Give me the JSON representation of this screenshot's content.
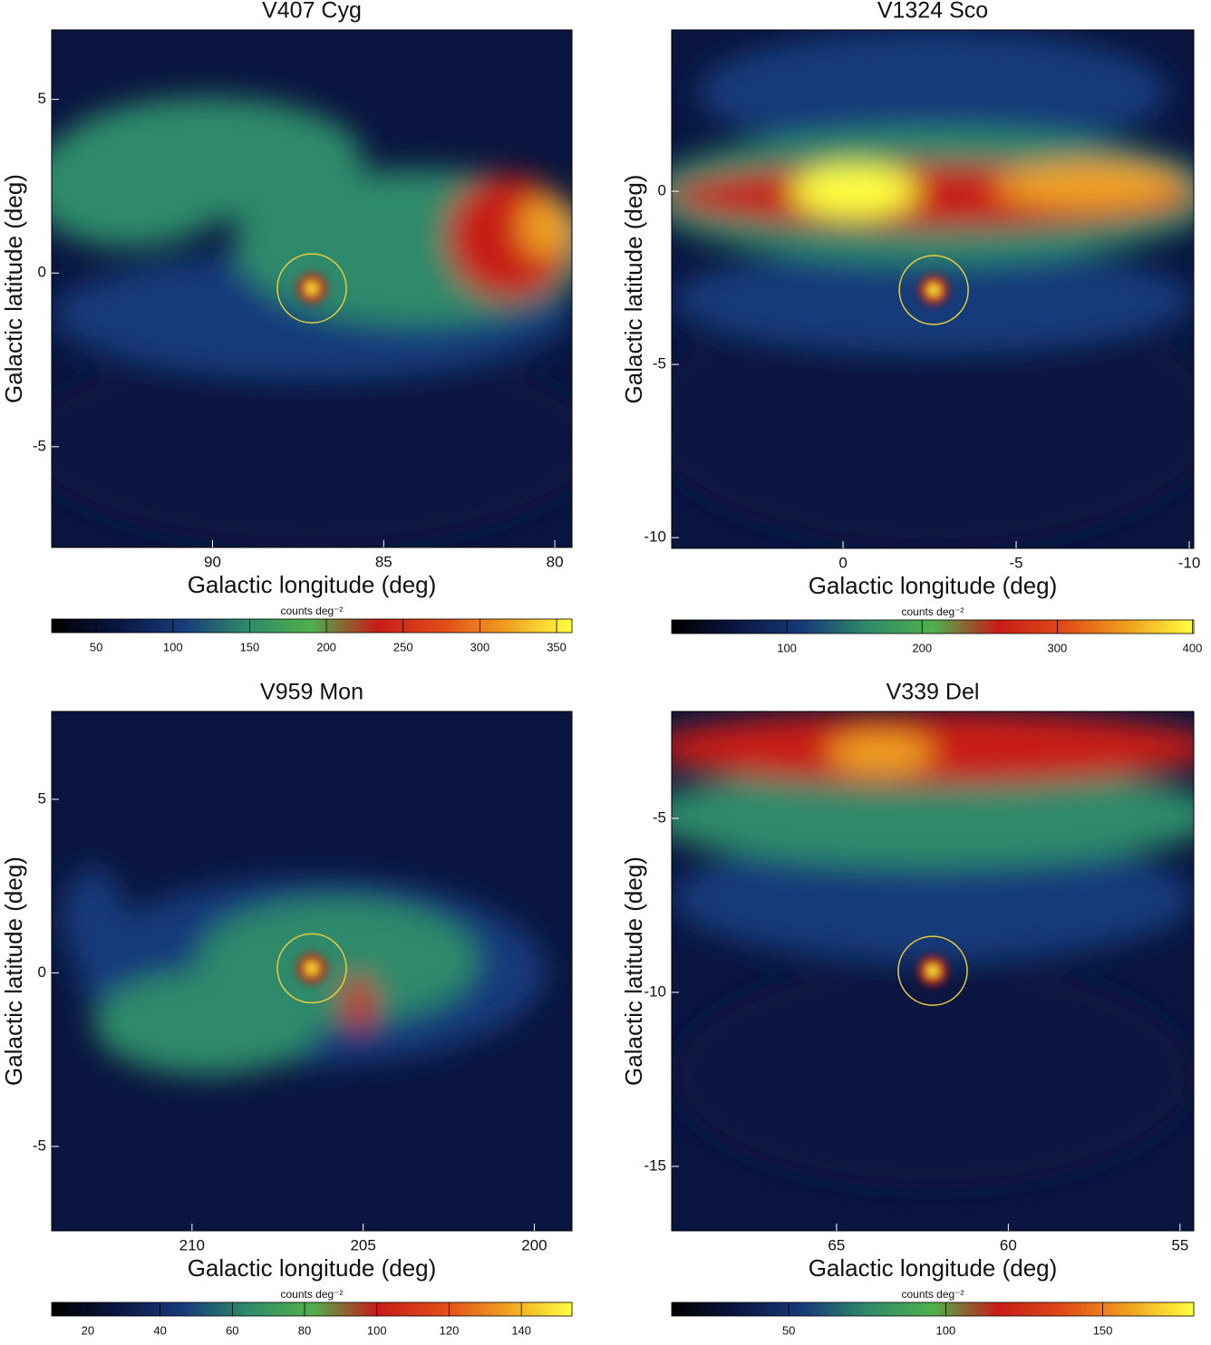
{
  "colormap": [
    "#000000",
    "#0a1640",
    "#173a7a",
    "#2f8a6a",
    "#4fb04c",
    "#c81c18",
    "#e04a18",
    "#f0a020",
    "#ffff40"
  ],
  "circle_color": "#e8cf40",
  "chart_data": [
    {
      "type": "heatmap",
      "title": "V407 Cyg",
      "xlabel": "Galactic longitude (deg)",
      "ylabel": "Galactic latitude (deg)",
      "xlim": [
        94.7,
        79.5
      ],
      "xticks": [
        90,
        85,
        80
      ],
      "ylim": [
        -7.9,
        7.0
      ],
      "yticks": [
        -5,
        0,
        5
      ],
      "circle": [
        87.1,
        -0.44
      ],
      "colorbar": {
        "label": "counts deg⁻²",
        "lim": [
          21,
          360
        ],
        "ticks": [
          50,
          100,
          150,
          200,
          250,
          300,
          350
        ]
      }
    },
    {
      "type": "heatmap",
      "title": "V1324 Sco",
      "xlabel": "Galactic longitude (deg)",
      "ylabel": "Galactic latitude (deg)",
      "xlim": [
        4.95,
        -10.13
      ],
      "xticks": [
        0,
        -5,
        -10
      ],
      "ylim": [
        -10.31,
        4.66
      ],
      "yticks": [
        -10,
        -5,
        0
      ],
      "circle": [
        -2.62,
        -2.85
      ],
      "colorbar": {
        "label": "counts deg⁻²",
        "lim": [
          14.8,
          401
        ],
        "ticks": [
          100,
          200,
          300,
          400
        ]
      }
    },
    {
      "type": "heatmap",
      "title": "V959 Mon",
      "xlabel": "Galactic longitude (deg)",
      "ylabel": "Galactic latitude (deg)",
      "xlim": [
        214.1,
        198.9
      ],
      "xticks": [
        210,
        205,
        200
      ],
      "ylim": [
        -7.43,
        7.53
      ],
      "yticks": [
        -5,
        0,
        5
      ],
      "circle": [
        206.5,
        0.13
      ],
      "colorbar": {
        "label": "counts deg⁻²",
        "lim": [
          10,
          154
        ],
        "ticks": [
          20,
          40,
          60,
          80,
          100,
          120,
          140
        ]
      }
    },
    {
      "type": "heatmap",
      "title": "V339 Del",
      "xlabel": "Galactic longitude (deg)",
      "ylabel": "Galactic latitude (deg)",
      "xlim": [
        69.8,
        54.6
      ],
      "xticks": [
        65,
        60,
        55
      ],
      "ylim": [
        -16.85,
        -1.93
      ],
      "yticks": [
        -15,
        -10,
        -5
      ],
      "circle": [
        62.2,
        -9.38
      ],
      "colorbar": {
        "label": "counts deg⁻²",
        "lim": [
          12.7,
          179
        ],
        "ticks": [
          50,
          100,
          150
        ]
      }
    }
  ]
}
